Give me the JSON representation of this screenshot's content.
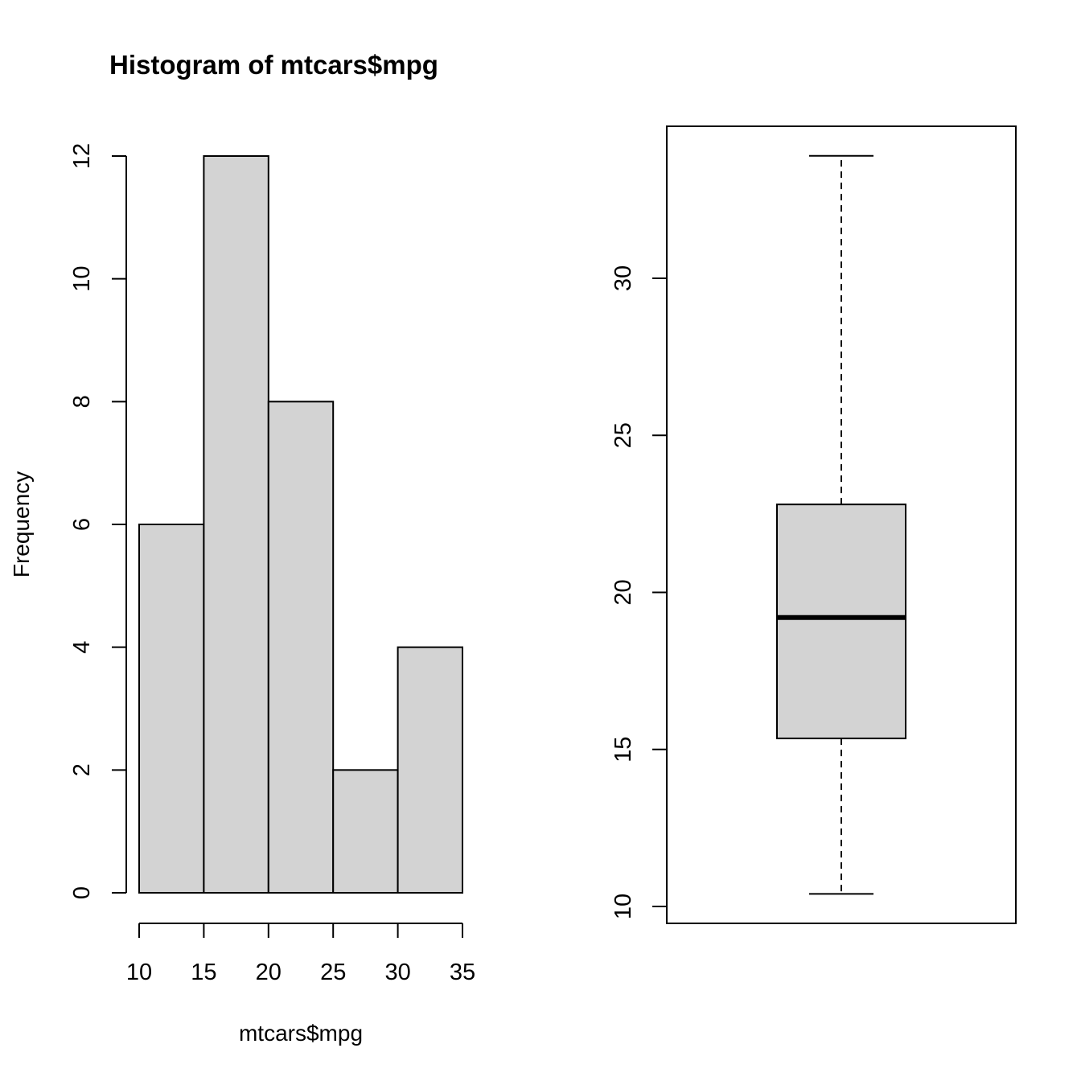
{
  "chart_data": [
    {
      "type": "bar",
      "subtype": "histogram",
      "title": "Histogram of mtcars$mpg",
      "xlabel": "mtcars$mpg",
      "ylabel": "Frequency",
      "bins": [
        {
          "from": 10,
          "to": 15,
          "count": 6
        },
        {
          "from": 15,
          "to": 20,
          "count": 12
        },
        {
          "from": 20,
          "to": 25,
          "count": 8
        },
        {
          "from": 25,
          "to": 30,
          "count": 2
        },
        {
          "from": 30,
          "to": 35,
          "count": 4
        }
      ],
      "xlim": [
        10,
        35
      ],
      "ylim": [
        0,
        12
      ],
      "x_ticks": [
        "10",
        "15",
        "20",
        "25",
        "30",
        "35"
      ],
      "y_ticks": [
        "0",
        "2",
        "4",
        "6",
        "8",
        "10",
        "12"
      ],
      "bar_fill": "#d3d3d3",
      "grid": false
    },
    {
      "type": "box",
      "title": "",
      "xlabel": "",
      "ylabel": "",
      "stats": {
        "min": 10.4,
        "q1": 15.35,
        "median": 19.2,
        "q3": 22.8,
        "max": 33.9
      },
      "ylim": [
        10,
        35
      ],
      "y_ticks": [
        "10",
        "15",
        "20",
        "25",
        "30"
      ],
      "box_fill": "#d3d3d3",
      "grid": false
    }
  ]
}
